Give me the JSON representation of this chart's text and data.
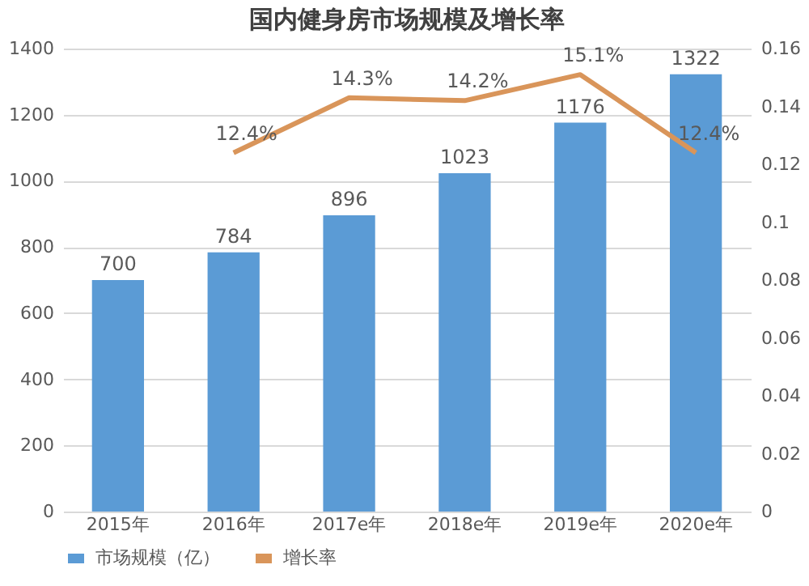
{
  "chart_data": {
    "type": "bar",
    "title": "国内健身房市场规模及增长率",
    "categories": [
      "2015年",
      "2016年",
      "2017e年",
      "2018e年",
      "2019e年",
      "2020e年"
    ],
    "series": [
      {
        "name": "市场规模（亿）",
        "color": "#5b9bd5",
        "values": [
          700,
          784,
          896,
          1023,
          1176,
          1322
        ],
        "value_labels": [
          "700",
          "784",
          "896",
          "1023",
          "1176",
          "1322"
        ]
      },
      {
        "name": "增长率",
        "type": "line",
        "axis": "y2",
        "color": "#d9955a",
        "values": [
          null,
          0.124,
          0.143,
          0.142,
          0.151,
          0.124
        ],
        "value_labels": [
          null,
          "12.4%",
          "14.3%",
          "14.2%",
          "15.1%",
          "12.4%"
        ]
      }
    ],
    "ylim": [
      0,
      1400
    ],
    "yticks": [
      0,
      200,
      400,
      600,
      800,
      1000,
      1200,
      1400
    ],
    "y2lim": [
      0,
      0.16
    ],
    "y2ticks": [
      0,
      0.02,
      0.04,
      0.06,
      0.08,
      0.1,
      0.12,
      0.14,
      0.16
    ],
    "grid": "y",
    "legend": "bottom",
    "marker": "none",
    "line_style": "solid"
  }
}
